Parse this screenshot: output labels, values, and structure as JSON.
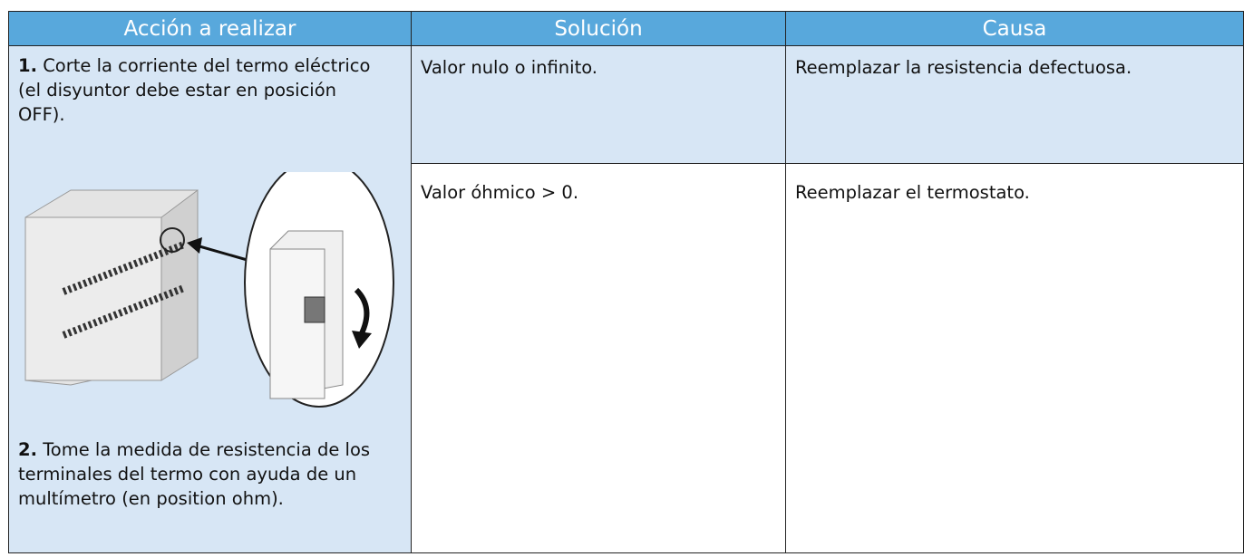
{
  "table": {
    "header": [
      "Acción a realizar",
      "Solución",
      "Causa"
    ],
    "action_steps": [
      {
        "number": "1.",
        "text": "Corte la corriente del termo eléctrico (el disyuntor debe estar en posición OFF)."
      },
      {
        "number": "2.",
        "text": "Tome la medida de resistencia de los terminales del termo con ayuda de un multímetro  (en position ohm)."
      }
    ],
    "rows": [
      [
        "Valor nulo o infinito.",
        "Reemplazar la resistencia defectuosa."
      ],
      [
        "Valor óhmico > 0.",
        "Reemplazar el termostato."
      ]
    ]
  }
}
